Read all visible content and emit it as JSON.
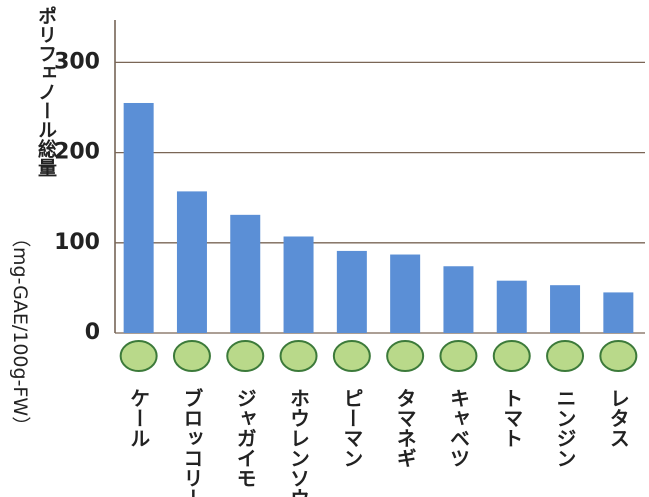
{
  "chart_data": {
    "type": "bar",
    "y_label": [
      "ポリフェノール総量",
      "（mg-GAE/100g-FW）"
    ],
    "categories": [
      "ケール",
      "ブロッコリー",
      "ジャガイモ",
      "ホウレンソウ",
      "ピーマン",
      "タマネギ",
      "キャベツ",
      "トマト",
      "ニンジン",
      "レタス"
    ],
    "values": [
      255,
      157,
      131,
      107,
      91,
      87,
      74,
      58,
      53,
      45
    ],
    "color": "#5b8fd6",
    "ylim": [
      0,
      347
    ],
    "yticks": [
      0,
      100,
      200,
      300
    ],
    "grid": true
  }
}
